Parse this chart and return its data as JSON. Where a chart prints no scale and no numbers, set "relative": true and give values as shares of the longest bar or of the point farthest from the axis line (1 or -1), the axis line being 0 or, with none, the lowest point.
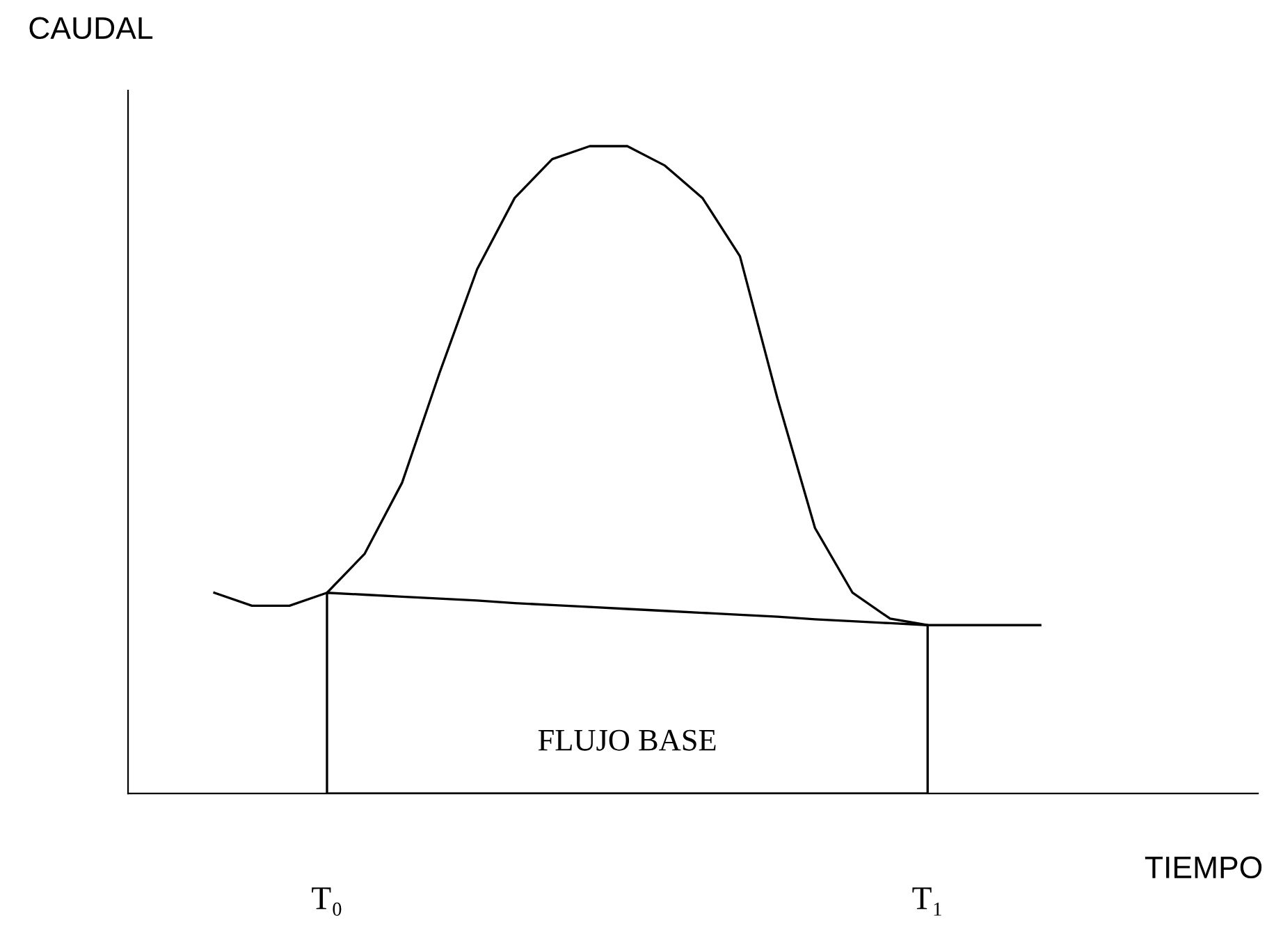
{
  "chart_data": {
    "type": "line",
    "relative": true,
    "xlabel": "TIEMPO",
    "ylabel": "CAUDAL",
    "categories": [
      null,
      null,
      null,
      "T₀",
      null,
      null,
      null,
      null,
      null,
      null,
      null,
      null,
      null,
      null,
      null,
      null,
      null,
      null,
      null,
      "T₁",
      null,
      null,
      null
    ],
    "grid": false,
    "legend": false,
    "marker": "none",
    "line_style": "solid",
    "annotations": [
      "FLUJO BASE"
    ],
    "series": [
      {
        "color": "#000000",
        "values": [
          0.31,
          0.29,
          0.29,
          0.31,
          0.37,
          0.48,
          0.65,
          0.81,
          0.92,
          0.98,
          1.0,
          1.0,
          0.97,
          0.92,
          0.83,
          0.61,
          0.41,
          0.31,
          0.27,
          0.26,
          0.26,
          0.26,
          0.26
        ]
      },
      {
        "type": "area",
        "color": "#000000",
        "values": [
          null,
          null,
          null,
          0.31,
          0.307,
          0.304,
          0.301,
          0.298,
          0.294,
          0.291,
          0.288,
          0.285,
          0.282,
          0.279,
          0.276,
          0.273,
          0.269,
          0.266,
          0.263,
          0.26,
          null,
          null,
          null
        ]
      }
    ]
  }
}
